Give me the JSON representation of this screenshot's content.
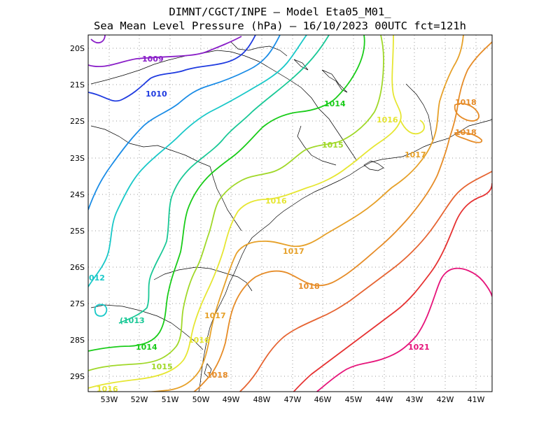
{
  "title": {
    "line1": "DIMNT/CGCT/INPE  —  Model Eta05_M01_",
    "line2": "Sea Mean Level Pressure (hPa) — 16/10/2023 00UTC fct=121h"
  },
  "axes": {
    "lat_labels": [
      "20S",
      "21S",
      "22S",
      "23S",
      "24S",
      "25S",
      "26S",
      "27S",
      "28S",
      "29S"
    ],
    "lon_labels": [
      "53W",
      "52W",
      "51W",
      "50W",
      "49W",
      "48W",
      "47W",
      "46W",
      "45W",
      "44W",
      "43W",
      "42W",
      "41W"
    ]
  },
  "colors": {
    "1009": "#8a1fc8",
    "1010": "#1f3be0",
    "1011": "#1a8ce6",
    "1012": "#19c8c8",
    "1013": "#19c896",
    "1014": "#19cc19",
    "1015": "#a0d828",
    "1016": "#e6e632",
    "1017": "#e6a028",
    "1018": "#e68c28",
    "1019": "#e66432",
    "1020": "#e63232",
    "1021": "#e6147a"
  },
  "contours": {
    "labels": {
      "c1009": "1009",
      "c1010": "1010",
      "c1012": "012",
      "c1013": "(1013",
      "c1014a": "1014",
      "c1014b": "1014",
      "c1015a": "1015",
      "c1015b": "1015",
      "c1016a": "1016",
      "c1016b": "1016",
      "c1016c": "1016",
      "c1016d": "1016",
      "c1017a": "1017",
      "c1017b": "1017",
      "c1017c": "1017",
      "c1018a": "1018",
      "c1018b": "1018",
      "c1018c": "1018",
      "c1018d": "1018",
      "c1021": "1021"
    }
  }
}
